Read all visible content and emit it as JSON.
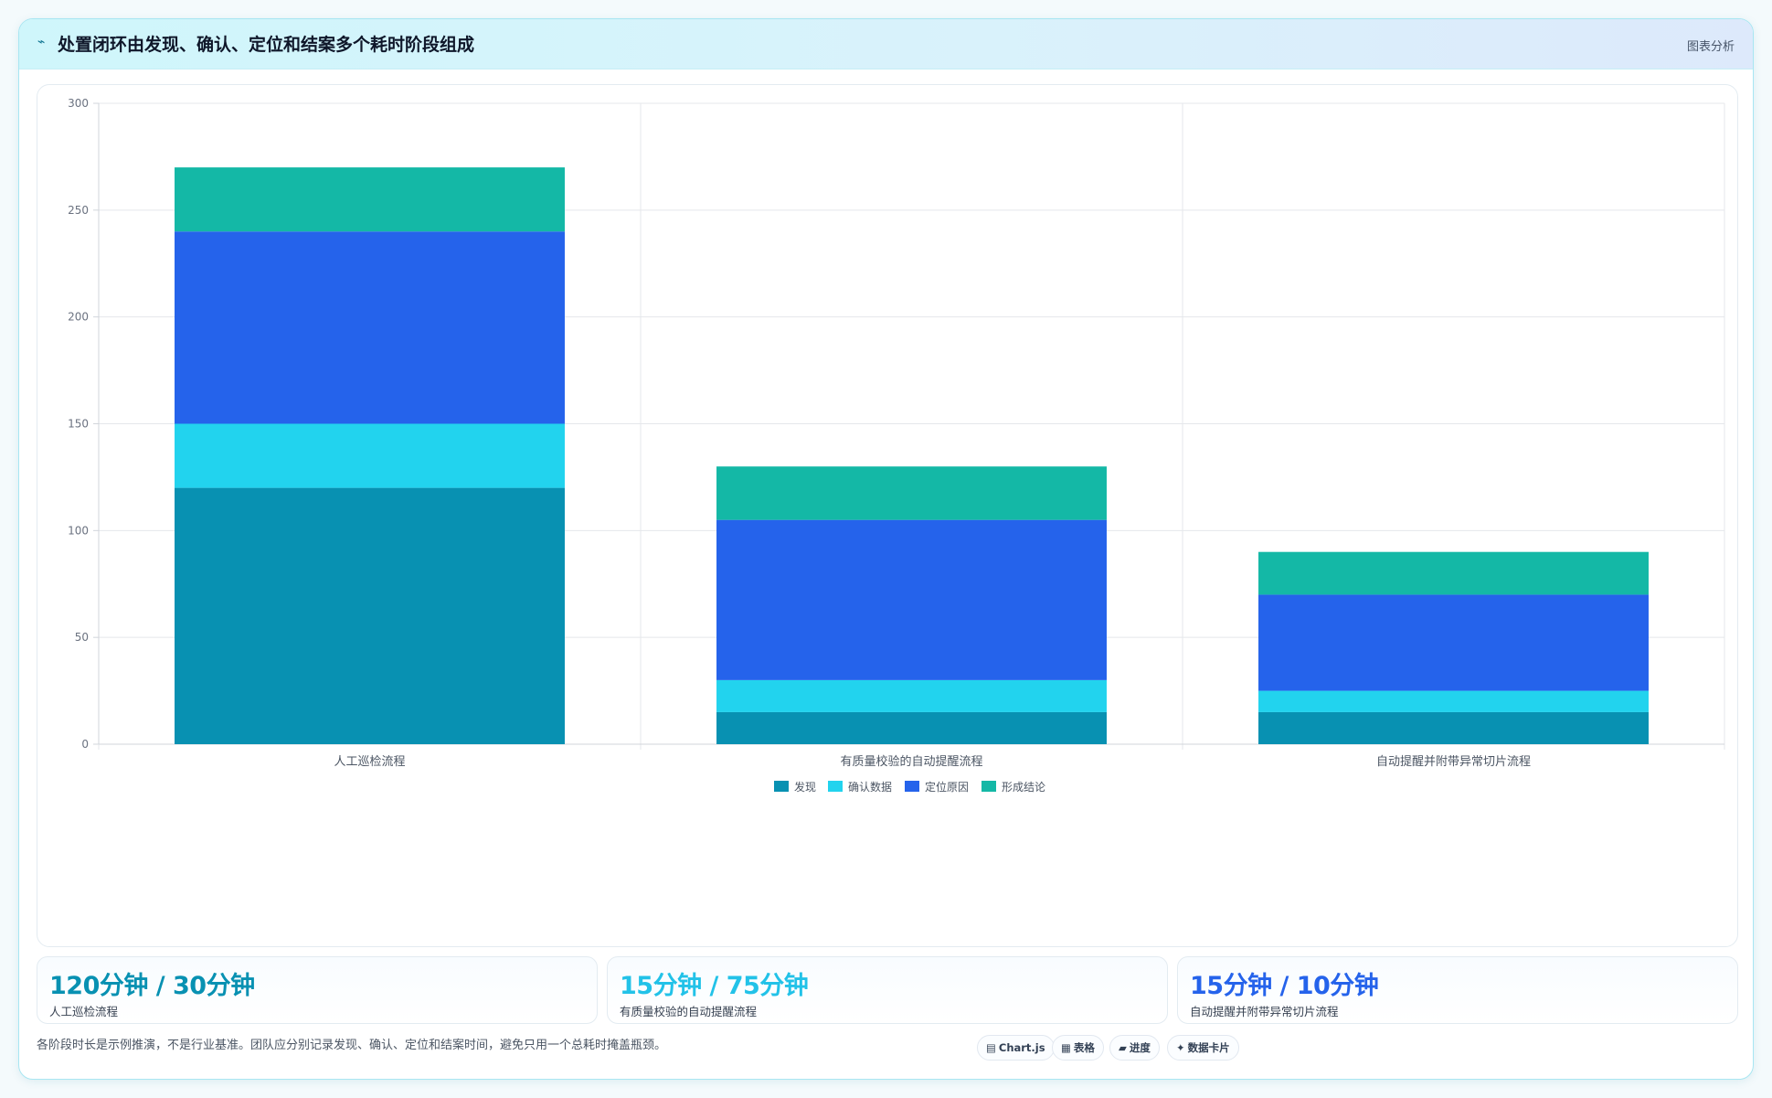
{
  "header": {
    "logo_icon": "⌁",
    "title": "处置闭环由发现、确认、定位和结案多个耗时阶段组成",
    "tag": "图表分析"
  },
  "chart_data": {
    "type": "bar",
    "stacked": true,
    "categories": [
      "人工巡检流程",
      "有质量校验的自动提醒流程",
      "自动提醒并附带异常切片流程"
    ],
    "series": [
      {
        "name": "发现",
        "color": "#0891b2",
        "values": [
          120,
          15,
          15
        ]
      },
      {
        "name": "确认数据",
        "color": "#22d3ee",
        "values": [
          30,
          15,
          10
        ]
      },
      {
        "name": "定位原因",
        "color": "#2563eb",
        "values": [
          90,
          75,
          45
        ]
      },
      {
        "name": "形成结论",
        "color": "#14b8a6",
        "values": [
          30,
          25,
          20
        ]
      }
    ],
    "ylim": [
      0,
      300
    ],
    "yticks": [
      0,
      50,
      100,
      150,
      200,
      250,
      300
    ],
    "grid": true,
    "legend": "bottom"
  },
  "stats": [
    {
      "value": "120分钟 / 30分钟",
      "label": "人工巡检流程",
      "color": "#0891b2"
    },
    {
      "value": "15分钟 / 75分钟",
      "label": "有质量校验的自动提醒流程",
      "color": "#22c2e8"
    },
    {
      "value": "15分钟 / 10分钟",
      "label": "自动提醒并附带异常切片流程",
      "color": "#2563eb"
    }
  ],
  "footnote": "各阶段时长是示例推演，不是行业基准。团队应分别记录发现、确认、定位和结案时间，避免只用一个总耗时掩盖瓶颈。",
  "chips": [
    {
      "icon": "▤",
      "label": "Chart.js"
    },
    {
      "icon": "▦",
      "label": "表格"
    },
    {
      "icon": "▰",
      "label": "进度"
    },
    {
      "icon": "✦",
      "label": "数据卡片"
    }
  ]
}
